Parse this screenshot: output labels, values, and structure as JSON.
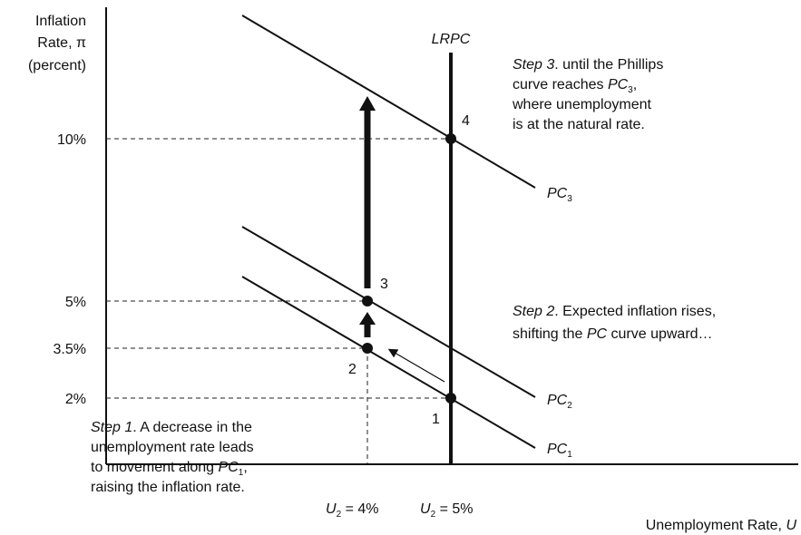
{
  "y_axis": {
    "label": [
      "Inflation",
      "Rate, π",
      "(percent)"
    ],
    "ticks": [
      "10%",
      "5%",
      "3.5%",
      "2%"
    ]
  },
  "x_axis": {
    "label": [
      "Unemployment Rate, ",
      "U"
    ],
    "ticks": [
      [
        "U",
        "2",
        " = 4%"
      ],
      [
        "U",
        "2",
        " = 5%"
      ]
    ]
  },
  "lrpc": "LRPC",
  "curves": [
    [
      "PC",
      "1"
    ],
    [
      "PC",
      "2"
    ],
    [
      "PC",
      "3"
    ]
  ],
  "points": [
    "1",
    "2",
    "3",
    "4"
  ],
  "step3": [
    [
      "Step 3",
      ". until the Phillips"
    ],
    [
      "curve reaches ",
      "PC",
      "3",
      ","
    ],
    [
      "where unemployment"
    ],
    [
      "is at the natural rate."
    ]
  ],
  "step2": [
    [
      "Step 2",
      ". Expected inflation rises,"
    ],
    [
      "shifting the ",
      "PC",
      " curve upward…"
    ]
  ],
  "step1": [
    [
      "Step 1",
      ". A decrease in the"
    ],
    [
      "unemployment rate leads"
    ],
    [
      "to movement along ",
      "PC",
      "1",
      ","
    ],
    [
      "raising the inflation rate."
    ]
  ]
}
